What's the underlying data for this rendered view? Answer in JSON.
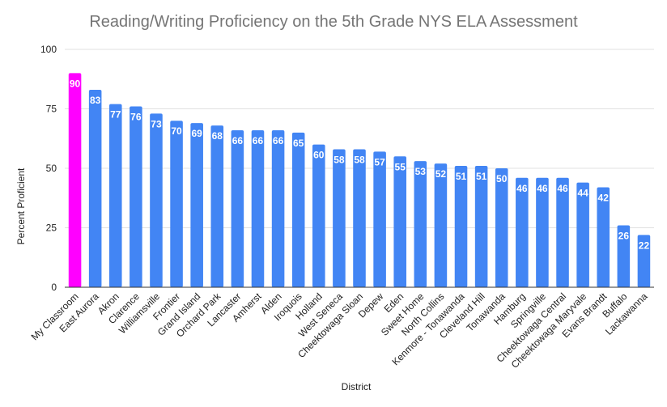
{
  "chart_data": {
    "type": "bar",
    "title": "Reading/Writing Proficiency on the 5th Grade NYS ELA Assessment",
    "xlabel": "District",
    "ylabel": "Percent Proficient",
    "ylim": [
      0,
      100
    ],
    "yticks": [
      0,
      25,
      50,
      75,
      100
    ],
    "grid": true,
    "legend": "none",
    "categories": [
      "My Classroom",
      "East Aurora",
      "Akron",
      "Clarence",
      "Williamsville",
      "Frontier",
      "Grand Island",
      "Orchard Park",
      "Lancaster",
      "Amherst",
      "Alden",
      "Iroquois",
      "Holland",
      "West Seneca",
      "Cheektowaga Sloan",
      "Depew",
      "Eden",
      "Sweet Home",
      "North Collins",
      "Kenmore - Tonawanda",
      "Cleveland Hill",
      "Tonawanda",
      "Hamburg",
      "Springville",
      "Cheektowaga Central",
      "Cheektowaga Maryvale",
      "Evans Brandt",
      "Buffalo",
      "Lackawanna"
    ],
    "values": [
      90,
      83,
      77,
      76,
      73,
      70,
      69,
      68,
      66,
      66,
      66,
      65,
      60,
      58,
      58,
      57,
      55,
      53,
      52,
      51,
      51,
      50,
      46,
      46,
      46,
      44,
      42,
      26,
      22
    ],
    "colors": {
      "default": "#4285f4",
      "highlight": "#ff00ff",
      "highlight_category": "My Classroom"
    }
  }
}
